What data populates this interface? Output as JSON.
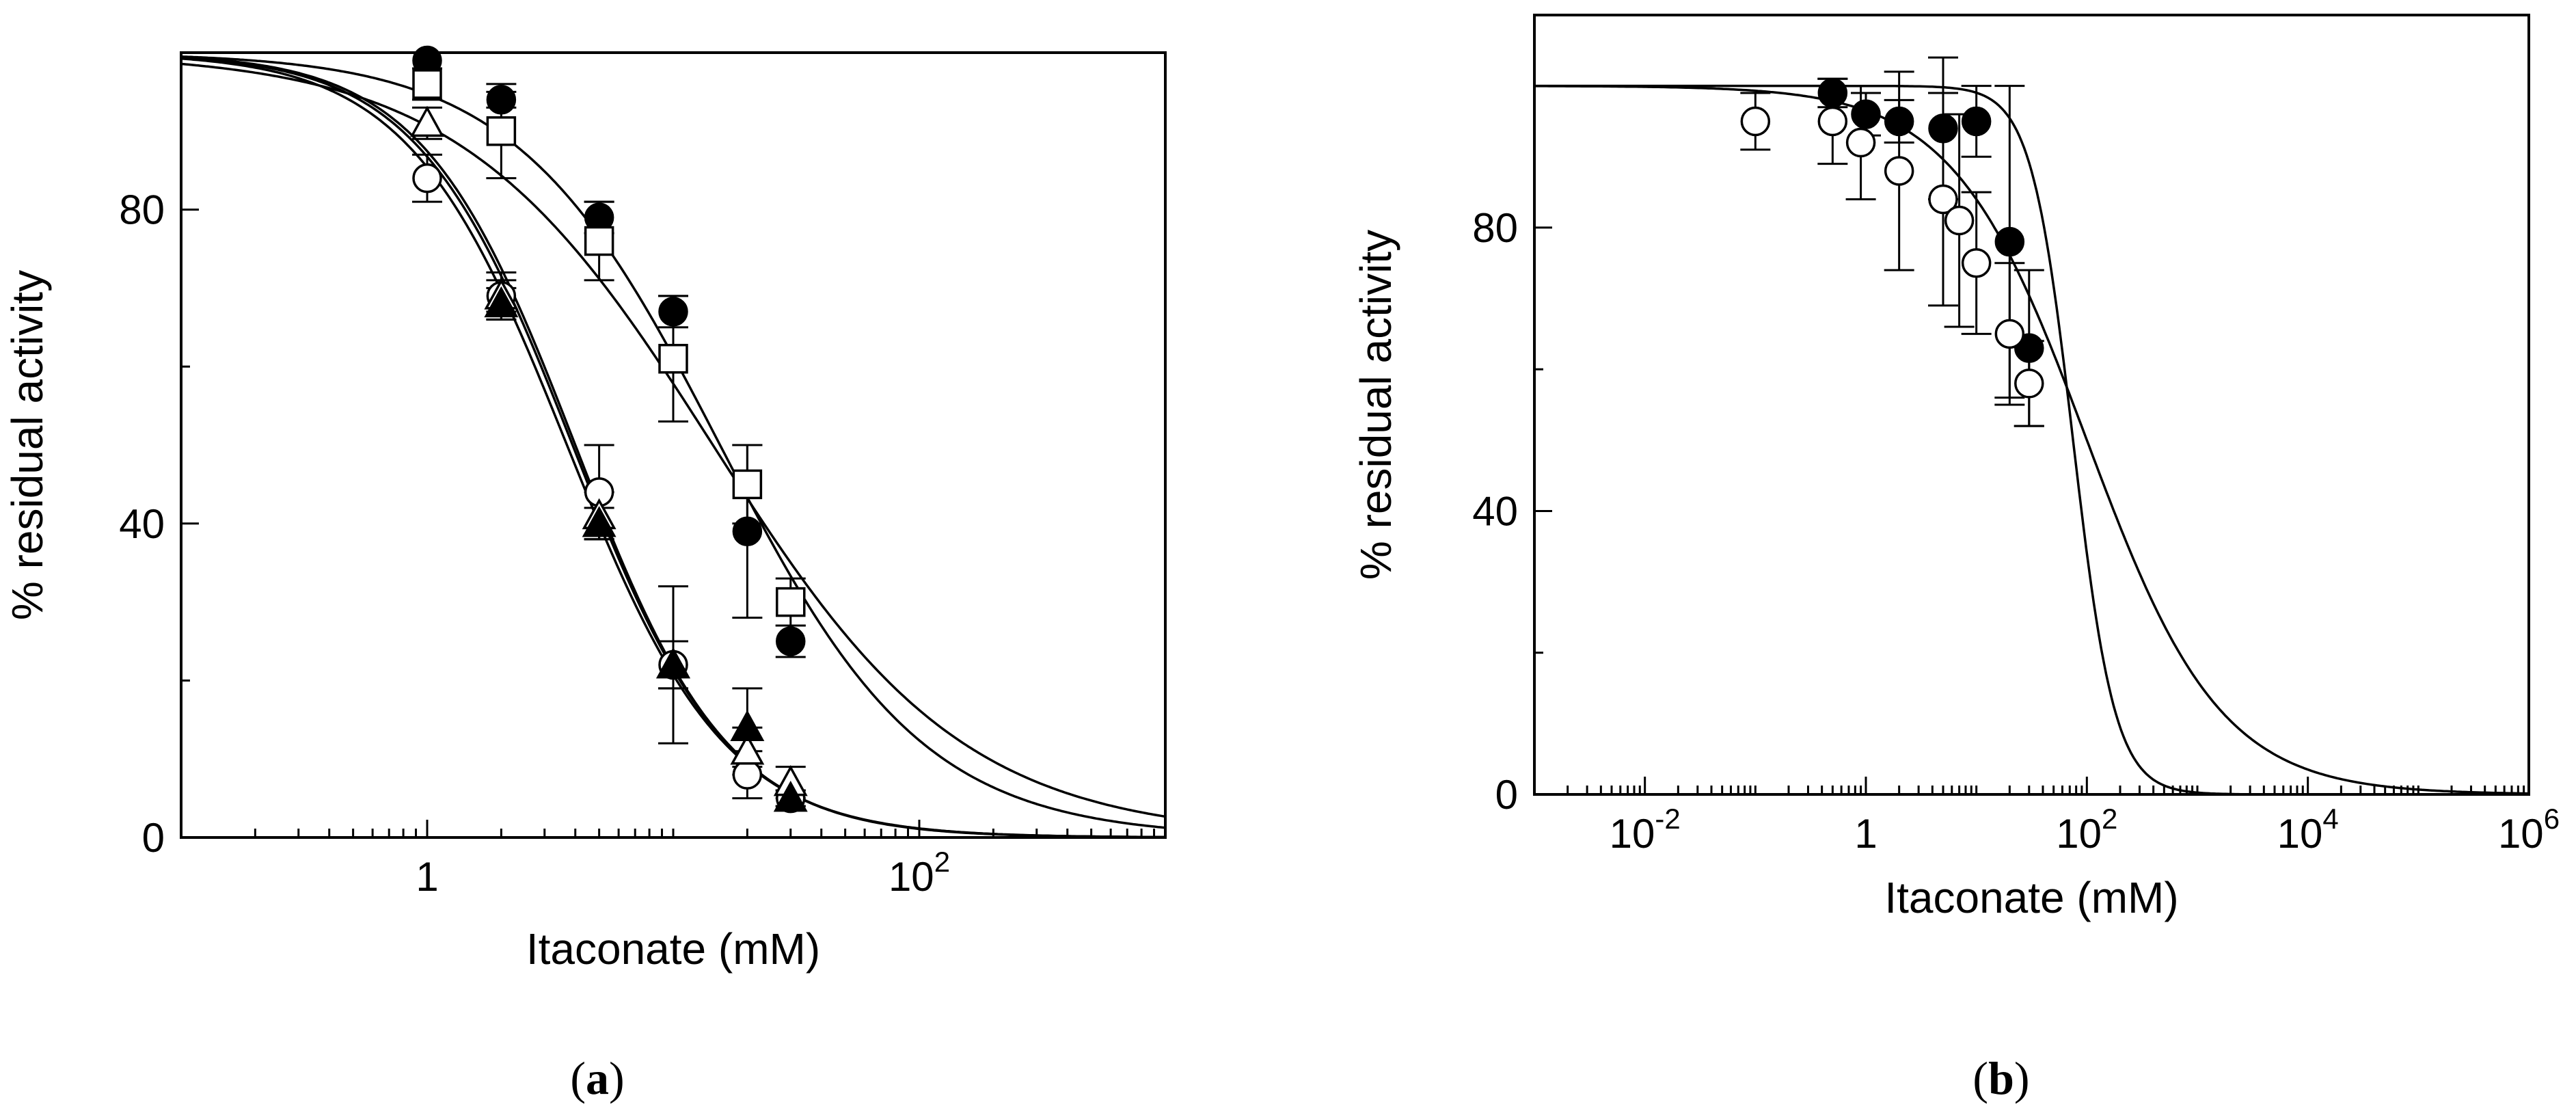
{
  "chart_data": [
    {
      "panel": "a",
      "caption_letter": "a",
      "type": "scatter",
      "title": "",
      "xlabel": "Itaconate (mM)",
      "ylabel": "% residual activity",
      "xscale": "log",
      "xlim": [
        0.1,
        1000
      ],
      "ylim": [
        0,
        100
      ],
      "x_ticks": [
        {
          "value": 1,
          "label": "1"
        },
        {
          "value": 100,
          "label": "10",
          "sup": "2"
        }
      ],
      "y_ticks": [
        {
          "value": 0,
          "label": "0"
        },
        {
          "value": 40,
          "label": "40"
        },
        {
          "value": 80,
          "label": "80"
        }
      ],
      "series": [
        {
          "name": "filled circles",
          "marker": "circle",
          "fill": "#000000",
          "x": [
            1,
            2,
            5,
            10,
            20,
            30
          ],
          "y": [
            99,
            94,
            79,
            67,
            39,
            25
          ],
          "err": [
            1,
            1,
            2,
            2,
            11,
            2
          ],
          "fit": {
            "ic50": 15.5,
            "hill": 1.05
          }
        },
        {
          "name": "open squares",
          "marker": "square",
          "fill": "#ffffff",
          "x": [
            1,
            2,
            5,
            10,
            20,
            30
          ],
          "y": [
            96,
            90,
            76,
            61,
            45,
            30
          ],
          "err": [
            2,
            6,
            5,
            8,
            5,
            3
          ],
          "fit": {
            "ic50": 14.5,
            "hill": 0.85
          }
        },
        {
          "name": "open circles",
          "marker": "circle",
          "fill": "#ffffff",
          "x": [
            1,
            2,
            5,
            10,
            20,
            30
          ],
          "y": [
            84,
            69,
            44,
            22,
            8,
            5
          ],
          "err": [
            3,
            3,
            6,
            3,
            3,
            1
          ],
          "fit": {
            "ic50": 3.7,
            "hill": 1.35
          }
        },
        {
          "name": "open triangles",
          "marker": "triangle",
          "fill": "#ffffff",
          "x": [
            1,
            2,
            5,
            10,
            20,
            30
          ],
          "y": [
            91,
            69,
            41,
            22,
            11,
            7
          ],
          "err": [
            2,
            2,
            3,
            10,
            3,
            2
          ],
          "fit": {
            "ic50": 3.9,
            "hill": 1.38
          }
        },
        {
          "name": "filled triangles",
          "marker": "triangle",
          "fill": "#000000",
          "x": [
            2,
            5,
            10,
            20,
            30
          ],
          "y": [
            68,
            40,
            22,
            14,
            5
          ],
          "err": [
            2,
            2,
            3,
            5,
            1
          ],
          "fit": {
            "ic50": 4.0,
            "hill": 1.4
          }
        }
      ]
    },
    {
      "panel": "b",
      "caption_letter": "b",
      "type": "scatter",
      "title": "",
      "xlabel": "Itaconate (mM)",
      "ylabel": "% residual activity",
      "xscale": "log",
      "xlim": [
        0.001,
        1000000
      ],
      "ylim": [
        0,
        110
      ],
      "x_ticks": [
        {
          "value": 0.01,
          "label": "10",
          "sup": "-2"
        },
        {
          "value": 1,
          "label": "1"
        },
        {
          "value": 100,
          "label": "10",
          "sup": "2"
        },
        {
          "value": 10000,
          "label": "10",
          "sup": "4"
        },
        {
          "value": 1000000,
          "label": "10",
          "sup": "6"
        }
      ],
      "y_ticks": [
        {
          "value": 0,
          "label": "0"
        },
        {
          "value": 40,
          "label": "40"
        },
        {
          "value": 80,
          "label": "80"
        }
      ],
      "series": [
        {
          "name": "filled circles",
          "marker": "circle",
          "fill": "#000000",
          "x": [
            0.5,
            1,
            2,
            5,
            10,
            20,
            30
          ],
          "y": [
            99,
            96,
            95,
            94,
            95,
            78,
            63
          ],
          "err": [
            2,
            3,
            3,
            10,
            5,
            22,
            11
          ],
          "fit": {
            "ic50": 75,
            "hill": 2.3
          }
        },
        {
          "name": "open circles",
          "marker": "circle",
          "fill": "#ffffff",
          "x": [
            0.1,
            0.5,
            0.9,
            2,
            5,
            7,
            10,
            20,
            30
          ],
          "y": [
            95,
            95,
            92,
            88,
            84,
            81,
            75,
            65,
            58
          ],
          "err": [
            4,
            6,
            8,
            14,
            15,
            15,
            10,
            10,
            6
          ],
          "fit": {
            "ic50": 100,
            "hill": 0.72
          }
        }
      ]
    }
  ]
}
